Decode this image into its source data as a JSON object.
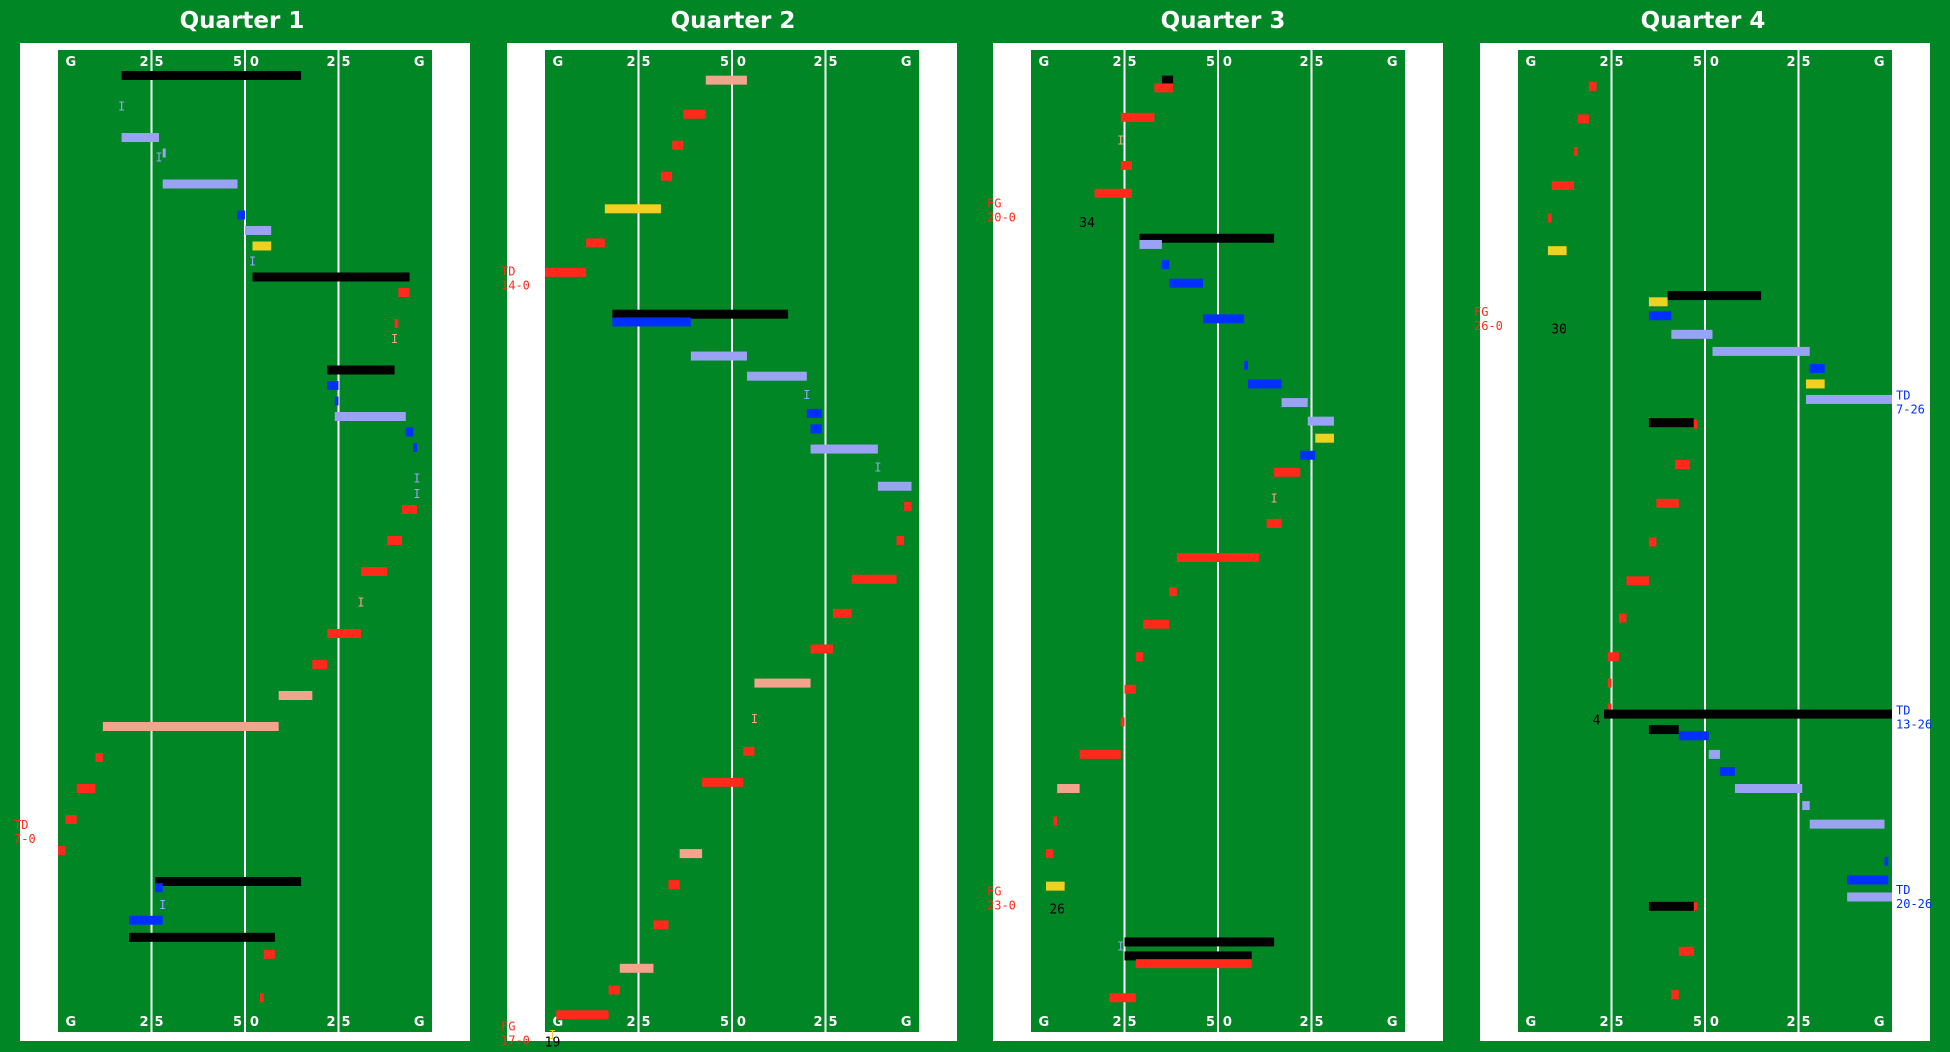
{
  "legend_colors": {
    "home_run": "#ff2a1a",
    "home_pass": "#f4a48c",
    "away_run": "#0030ff",
    "away_pass": "#9aa2f4",
    "penalty": "#000000",
    "kick": "#f0d020",
    "field": "#008624"
  },
  "chart_data": [
    {
      "type": "bar",
      "title": "Quarter 1",
      "field_labels": [
        "G",
        "2",
        "5",
        "5",
        "0",
        "2",
        "5",
        "G"
      ],
      "x_axis": "yard line 0-100 (left goal to right goal)",
      "plays": [
        {
          "s": 17,
          "e": 65,
          "y": 1,
          "c": "pen"
        },
        {
          "s": 17,
          "e": 27,
          "y": 5,
          "c": "apass"
        },
        {
          "s": 28,
          "e": 28,
          "y": 6,
          "c": "apass"
        },
        {
          "s": 28,
          "e": 48,
          "y": 8,
          "c": "apass"
        },
        {
          "s": 48,
          "e": 50,
          "y": 10,
          "c": "arun"
        },
        {
          "s": 50,
          "e": 57,
          "y": 11,
          "c": "apass"
        },
        {
          "s": 52,
          "e": 57,
          "y": 12,
          "c": "kick"
        },
        {
          "s": 52,
          "e": 94,
          "y": 14,
          "c": "pen"
        },
        {
          "s": 91,
          "e": 94,
          "y": 15,
          "c": "hrun"
        },
        {
          "s": 90,
          "e": 91,
          "y": 17,
          "c": "hrun"
        },
        {
          "s": 72,
          "e": 90,
          "y": 20,
          "c": "pen"
        },
        {
          "s": 72,
          "e": 75,
          "y": 21,
          "c": "arun"
        },
        {
          "s": 74,
          "e": 75,
          "y": 22,
          "c": "arun"
        },
        {
          "s": 74,
          "e": 93,
          "y": 23,
          "c": "apass"
        },
        {
          "s": 93,
          "e": 95,
          "y": 24,
          "c": "arun"
        },
        {
          "s": 95,
          "e": 96,
          "y": 25,
          "c": "arun"
        },
        {
          "s": 92,
          "e": 96,
          "y": 29,
          "c": "hrun"
        },
        {
          "s": 88,
          "e": 92,
          "y": 31,
          "c": "hrun"
        },
        {
          "s": 81,
          "e": 88,
          "y": 33,
          "c": "hrun"
        },
        {
          "s": 72,
          "e": 81,
          "y": 37,
          "c": "hrun"
        },
        {
          "s": 68,
          "e": 72,
          "y": 39,
          "c": "hrun"
        },
        {
          "s": 59,
          "e": 68,
          "y": 41,
          "c": "hpass"
        },
        {
          "s": 12,
          "e": 59,
          "y": 43,
          "c": "hpass"
        },
        {
          "s": 10,
          "e": 12,
          "y": 45,
          "c": "hrun"
        },
        {
          "s": 5,
          "e": 10,
          "y": 47,
          "c": "hrun"
        },
        {
          "s": 2,
          "e": 5,
          "y": 49,
          "c": "hrun"
        },
        {
          "s": 0,
          "e": 2,
          "y": 51,
          "c": "hrun"
        },
        {
          "s": 26,
          "e": 65,
          "y": 53,
          "c": "pen"
        },
        {
          "s": 26,
          "e": 28,
          "y": 53.4,
          "c": "arun"
        },
        {
          "s": 19,
          "e": 28,
          "y": 55.5,
          "c": "arun"
        },
        {
          "s": 19,
          "e": 58,
          "y": 56.6,
          "c": "pen"
        },
        {
          "s": 55,
          "e": 58,
          "y": 57.7,
          "c": "hrun"
        },
        {
          "s": 54,
          "e": 55,
          "y": 60.5,
          "c": "hrun"
        }
      ],
      "incompletions": [
        {
          "x": 17,
          "y": 3,
          "c": "apass"
        },
        {
          "x": 27,
          "y": 6.3,
          "c": "apass"
        },
        {
          "x": 52,
          "y": 13,
          "c": "apass"
        },
        {
          "x": 90,
          "y": 18,
          "c": "hpass"
        },
        {
          "x": 96,
          "y": 27,
          "c": "apass"
        },
        {
          "x": 96,
          "y": 28,
          "c": "apass"
        },
        {
          "x": 81,
          "y": 35,
          "c": "hpass"
        },
        {
          "x": 28,
          "y": 54.5,
          "c": "apass"
        }
      ],
      "scores": [
        {
          "y": 50,
          "side": "left",
          "c": "home",
          "l1": "TD",
          "l2": "7-0"
        }
      ],
      "yard_notes": []
    },
    {
      "type": "bar",
      "title": "Quarter 2",
      "field_labels": [
        "G",
        "2",
        "5",
        "5",
        "0",
        "2",
        "5",
        "G"
      ],
      "x_axis": "yard line 0-100 (left goal to right goal)",
      "plays": [
        {
          "s": 43,
          "e": 54,
          "y": 1.3,
          "c": "hpass"
        },
        {
          "s": 37,
          "e": 43,
          "y": 3.5,
          "c": "hrun"
        },
        {
          "s": 34,
          "e": 37,
          "y": 5.5,
          "c": "hrun"
        },
        {
          "s": 31,
          "e": 34,
          "y": 7.5,
          "c": "hrun"
        },
        {
          "s": 16,
          "e": 31,
          "y": 9.6,
          "c": "kick"
        },
        {
          "s": 11,
          "e": 16,
          "y": 11.8,
          "c": "hrun"
        },
        {
          "s": 0,
          "e": 11,
          "y": 13.7,
          "c": "hrun"
        },
        {
          "s": 18,
          "e": 65,
          "y": 16.4,
          "c": "pen"
        },
        {
          "s": 18,
          "e": 39,
          "y": 16.9,
          "c": "arun"
        },
        {
          "s": 39,
          "e": 54,
          "y": 19.1,
          "c": "apass"
        },
        {
          "s": 54,
          "e": 70,
          "y": 20.4,
          "c": "apass"
        },
        {
          "s": 70,
          "e": 74,
          "y": 22.8,
          "c": "arun"
        },
        {
          "s": 71,
          "e": 74,
          "y": 23.8,
          "c": "arun"
        },
        {
          "s": 71,
          "e": 89,
          "y": 25.1,
          "c": "apass"
        },
        {
          "s": 89,
          "e": 98,
          "y": 27.5,
          "c": "apass"
        },
        {
          "s": 96,
          "e": 98,
          "y": 28.8,
          "c": "hrun"
        },
        {
          "s": 94,
          "e": 96,
          "y": 31,
          "c": "hrun"
        },
        {
          "s": 82,
          "e": 94,
          "y": 33.5,
          "c": "hrun"
        },
        {
          "s": 77,
          "e": 82,
          "y": 35.7,
          "c": "hrun"
        },
        {
          "s": 71,
          "e": 77,
          "y": 38,
          "c": "hrun"
        },
        {
          "s": 56,
          "e": 71,
          "y": 40.2,
          "c": "hpass"
        },
        {
          "s": 53,
          "e": 56,
          "y": 44.6,
          "c": "hrun"
        },
        {
          "s": 42,
          "e": 53,
          "y": 46.6,
          "c": "hrun"
        },
        {
          "s": 36,
          "e": 42,
          "y": 51.2,
          "c": "hpass"
        },
        {
          "s": 33,
          "e": 36,
          "y": 53.2,
          "c": "hrun"
        },
        {
          "s": 29,
          "e": 33,
          "y": 55.8,
          "c": "hrun"
        },
        {
          "s": 20,
          "e": 29,
          "y": 58.6,
          "c": "hpass"
        },
        {
          "s": 17,
          "e": 20,
          "y": 60,
          "c": "hrun"
        },
        {
          "s": 3,
          "e": 17,
          "y": 61.6,
          "c": "hrun"
        }
      ],
      "incompletions": [
        {
          "x": 70,
          "y": 21.6,
          "c": "apass"
        },
        {
          "x": 89,
          "y": 26.3,
          "c": "apass"
        },
        {
          "x": 56,
          "y": 42.5,
          "c": "hpass"
        },
        {
          "x": 2,
          "y": 62.9,
          "c": "kick"
        }
      ],
      "scores": [
        {
          "y": 14.3,
          "side": "left",
          "c": "home",
          "l1": "TD",
          "l2": "14-0"
        },
        {
          "y": 63,
          "side": "left",
          "c": "home",
          "l1": "FG",
          "l2": "17-0"
        }
      ],
      "yard_notes": [
        {
          "x": 2,
          "y": 63.4,
          "t": "19"
        }
      ]
    },
    {
      "type": "bar",
      "title": "Quarter 3",
      "field_labels": [
        "G",
        "2",
        "5",
        "5",
        "0",
        "2",
        "5",
        "G"
      ],
      "x_axis": "yard line 0-100 (left goal to right goal)",
      "plays": [
        {
          "s": 35,
          "e": 38,
          "y": 1.3,
          "c": "pen"
        },
        {
          "s": 33,
          "e": 38,
          "y": 1.8,
          "c": "hrun"
        },
        {
          "s": 24,
          "e": 33,
          "y": 3.7,
          "c": "hrun"
        },
        {
          "s": 24,
          "e": 27,
          "y": 6.8,
          "c": "hrun"
        },
        {
          "s": 17,
          "e": 27,
          "y": 8.6,
          "c": "hrun"
        },
        {
          "s": 29,
          "e": 65,
          "y": 11.5,
          "c": "pen"
        },
        {
          "s": 29,
          "e": 35,
          "y": 11.9,
          "c": "apass"
        },
        {
          "s": 35,
          "e": 37,
          "y": 13.2,
          "c": "arun"
        },
        {
          "s": 37,
          "e": 46,
          "y": 14.4,
          "c": "arun"
        },
        {
          "s": 46,
          "e": 57,
          "y": 16.7,
          "c": "arun"
        },
        {
          "s": 57,
          "e": 58,
          "y": 19.7,
          "c": "arun"
        },
        {
          "s": 58,
          "e": 67,
          "y": 20.9,
          "c": "arun"
        },
        {
          "s": 67,
          "e": 74,
          "y": 22.1,
          "c": "apass"
        },
        {
          "s": 74,
          "e": 81,
          "y": 23.3,
          "c": "apass"
        },
        {
          "s": 76,
          "e": 81,
          "y": 24.4,
          "c": "kick"
        },
        {
          "s": 72,
          "e": 76,
          "y": 25.5,
          "c": "arun"
        },
        {
          "s": 65,
          "e": 72,
          "y": 26.6,
          "c": "hrun"
        },
        {
          "s": 63,
          "e": 67,
          "y": 29.9,
          "c": "hrun"
        },
        {
          "s": 39,
          "e": 61,
          "y": 32.1,
          "c": "hrun"
        },
        {
          "s": 37,
          "e": 39,
          "y": 34.3,
          "c": "hrun"
        },
        {
          "s": 30,
          "e": 37,
          "y": 36.4,
          "c": "hrun"
        },
        {
          "s": 28,
          "e": 30,
          "y": 38.5,
          "c": "hrun"
        },
        {
          "s": 25,
          "e": 28,
          "y": 40.6,
          "c": "hrun"
        },
        {
          "s": 24,
          "e": 25,
          "y": 42.7,
          "c": "hrun"
        },
        {
          "s": 13,
          "e": 24,
          "y": 44.8,
          "c": "hrun"
        },
        {
          "s": 7,
          "e": 13,
          "y": 47,
          "c": "hpass"
        },
        {
          "s": 6,
          "e": 7,
          "y": 49.1,
          "c": "hrun"
        },
        {
          "s": 4,
          "e": 6,
          "y": 51.2,
          "c": "hrun"
        },
        {
          "s": 4,
          "e": 9,
          "y": 53.3,
          "c": "kick"
        },
        {
          "s": 25,
          "e": 65,
          "y": 56.9,
          "c": "pen"
        },
        {
          "s": 25,
          "e": 59,
          "y": 57.8,
          "c": "pen"
        },
        {
          "s": 28,
          "e": 59,
          "y": 58.3,
          "c": "hrun"
        },
        {
          "s": 21,
          "e": 28,
          "y": 60.5,
          "c": "hrun"
        }
      ],
      "incompletions": [
        {
          "x": 24,
          "y": 5.2,
          "c": "hpass"
        },
        {
          "x": 65,
          "y": 28.3,
          "c": "hpass"
        },
        {
          "x": 24,
          "y": 57.2,
          "c": "apass"
        }
      ],
      "scores": [
        {
          "y": 9.9,
          "side": "left",
          "c": "home",
          "l1": "FG",
          "l2": "20-0"
        },
        {
          "y": 54.3,
          "side": "left",
          "c": "home",
          "l1": "FG",
          "l2": "23-0"
        }
      ],
      "yard_notes": [
        {
          "x": 15,
          "y": 10.5,
          "t": "34"
        },
        {
          "x": 7,
          "y": 54.8,
          "t": "26"
        }
      ]
    },
    {
      "type": "bar",
      "title": "Quarter 4",
      "field_labels": [
        "G",
        "2",
        "5",
        "5",
        "0",
        "2",
        "5",
        "G"
      ],
      "x_axis": "yard line 0-100 (left goal to right goal)",
      "plays": [
        {
          "s": 19,
          "e": 21,
          "y": 1.7,
          "c": "hrun"
        },
        {
          "s": 16,
          "e": 19,
          "y": 3.8,
          "c": "hrun"
        },
        {
          "s": 15,
          "e": 16,
          "y": 5.9,
          "c": "hrun"
        },
        {
          "s": 9,
          "e": 15,
          "y": 8.1,
          "c": "hrun"
        },
        {
          "s": 8,
          "e": 9,
          "y": 10.2,
          "c": "hrun"
        },
        {
          "s": 8,
          "e": 13,
          "y": 12.3,
          "c": "kick"
        },
        {
          "s": 40,
          "e": 65,
          "y": 15.2,
          "c": "pen"
        },
        {
          "s": 35,
          "e": 40,
          "y": 15.6,
          "c": "kick"
        },
        {
          "s": 35,
          "e": 41,
          "y": 16.5,
          "c": "arun"
        },
        {
          "s": 41,
          "e": 52,
          "y": 17.7,
          "c": "apass"
        },
        {
          "s": 52,
          "e": 78,
          "y": 18.8,
          "c": "apass"
        },
        {
          "s": 78,
          "e": 82,
          "y": 19.9,
          "c": "arun"
        },
        {
          "s": 77,
          "e": 82,
          "y": 20.9,
          "c": "kick"
        },
        {
          "s": 77,
          "e": 100,
          "y": 21.9,
          "c": "apass"
        },
        {
          "s": 35,
          "e": 47,
          "y": 23.4,
          "c": "pen"
        },
        {
          "s": 47,
          "e": 48,
          "y": 23.5,
          "c": "hrun"
        },
        {
          "s": 42,
          "e": 46,
          "y": 26.1,
          "c": "hrun"
        },
        {
          "s": 37,
          "e": 43,
          "y": 28.6,
          "c": "hrun"
        },
        {
          "s": 35,
          "e": 37,
          "y": 31.1,
          "c": "hrun"
        },
        {
          "s": 29,
          "e": 35,
          "y": 33.6,
          "c": "hrun"
        },
        {
          "s": 27,
          "e": 29,
          "y": 36,
          "c": "hrun"
        },
        {
          "s": 24,
          "e": 27,
          "y": 38.5,
          "c": "hrun"
        },
        {
          "s": 24,
          "e": 25,
          "y": 40.2,
          "c": "hrun"
        },
        {
          "s": 24,
          "e": 25,
          "y": 41.8,
          "c": "hrun"
        },
        {
          "s": 23,
          "e": 100,
          "y": 42.2,
          "c": "pen"
        },
        {
          "s": 35,
          "e": 43,
          "y": 43.2,
          "c": "pen"
        },
        {
          "s": 43,
          "e": 51,
          "y": 43.6,
          "c": "arun"
        },
        {
          "s": 51,
          "e": 54,
          "y": 44.8,
          "c": "apass"
        },
        {
          "s": 54,
          "e": 58,
          "y": 45.9,
          "c": "arun"
        },
        {
          "s": 58,
          "e": 76,
          "y": 47,
          "c": "apass"
        },
        {
          "s": 76,
          "e": 78,
          "y": 48.1,
          "c": "apass"
        },
        {
          "s": 78,
          "e": 98,
          "y": 49.3,
          "c": "apass"
        },
        {
          "s": 98,
          "e": 99,
          "y": 51.7,
          "c": "arun"
        },
        {
          "s": 88,
          "e": 99,
          "y": 52.9,
          "c": "arun"
        },
        {
          "s": 88,
          "e": 100,
          "y": 54,
          "c": "apass"
        },
        {
          "s": 35,
          "e": 48,
          "y": 54.6,
          "c": "pen"
        },
        {
          "s": 47,
          "e": 48,
          "y": 54.6,
          "c": "hrun"
        },
        {
          "s": 43,
          "e": 47,
          "y": 57.5,
          "c": "hrun"
        },
        {
          "s": 41,
          "e": 43,
          "y": 60.3,
          "c": "hrun"
        }
      ],
      "incompletions": [],
      "scores": [
        {
          "y": 16.9,
          "side": "left",
          "c": "home",
          "l1": "FG",
          "l2": "26-0"
        },
        {
          "y": 22.3,
          "side": "right",
          "c": "away",
          "l1": "TD",
          "l2": "7-26"
        },
        {
          "y": 42.6,
          "side": "right",
          "c": "away",
          "l1": "TD",
          "l2": "13-26"
        },
        {
          "y": 54.2,
          "side": "right",
          "c": "away",
          "l1": "TD",
          "l2": "20-26"
        }
      ],
      "yard_notes": [
        {
          "x": 11,
          "y": 17.4,
          "t": "30"
        },
        {
          "x": 21,
          "y": 42.6,
          "t": "4"
        }
      ]
    }
  ]
}
